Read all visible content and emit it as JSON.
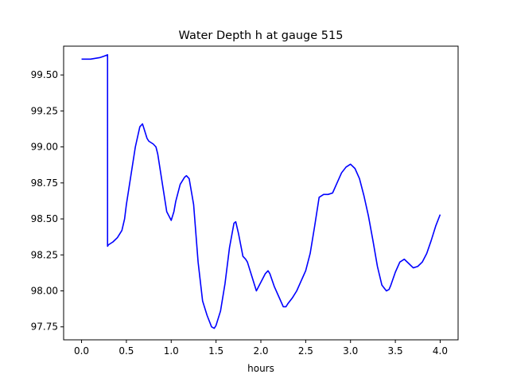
{
  "chart_data": {
    "type": "line",
    "title": "Water Depth h at gauge 515",
    "xlabel": "hours",
    "ylabel": "",
    "xlim": [
      -0.2,
      4.2
    ],
    "ylim": [
      97.66,
      99.7
    ],
    "xticks": [
      0.0,
      0.5,
      1.0,
      1.5,
      2.0,
      2.5,
      3.0,
      3.5,
      4.0
    ],
    "xtick_labels": [
      "0.0",
      "0.5",
      "1.0",
      "1.5",
      "2.0",
      "2.5",
      "3.0",
      "3.5",
      "4.0"
    ],
    "yticks": [
      97.75,
      98.0,
      98.25,
      98.5,
      98.75,
      99.0,
      99.25,
      99.5
    ],
    "ytick_labels": [
      "97.75",
      "98.00",
      "98.25",
      "98.50",
      "98.75",
      "99.00",
      "99.25",
      "99.50"
    ],
    "grid": false,
    "series": [
      {
        "color": "#0000ff",
        "x": [
          0.0,
          0.1,
          0.2,
          0.25,
          0.29,
          0.29,
          0.3,
          0.35,
          0.4,
          0.45,
          0.48,
          0.5,
          0.55,
          0.6,
          0.65,
          0.68,
          0.7,
          0.73,
          0.75,
          0.8,
          0.83,
          0.85,
          0.9,
          0.95,
          1.0,
          1.03,
          1.05,
          1.1,
          1.15,
          1.17,
          1.2,
          1.25,
          1.3,
          1.35,
          1.4,
          1.45,
          1.48,
          1.5,
          1.55,
          1.6,
          1.65,
          1.7,
          1.72,
          1.75,
          1.8,
          1.83,
          1.85,
          1.9,
          1.95,
          2.0,
          2.05,
          2.08,
          2.1,
          2.15,
          2.2,
          2.25,
          2.28,
          2.3,
          2.35,
          2.4,
          2.45,
          2.5,
          2.55,
          2.6,
          2.65,
          2.7,
          2.75,
          2.8,
          2.85,
          2.9,
          2.95,
          3.0,
          3.05,
          3.1,
          3.15,
          3.2,
          3.25,
          3.3,
          3.35,
          3.4,
          3.43,
          3.45,
          3.5,
          3.55,
          3.6,
          3.65,
          3.7,
          3.75,
          3.8,
          3.85,
          3.9,
          3.95,
          4.0
        ],
        "y": [
          99.61,
          99.61,
          99.62,
          99.63,
          99.64,
          98.31,
          98.32,
          98.34,
          98.37,
          98.42,
          98.5,
          98.6,
          98.8,
          99.0,
          99.14,
          99.16,
          99.12,
          99.06,
          99.04,
          99.02,
          99.0,
          98.95,
          98.75,
          98.55,
          98.49,
          98.55,
          98.62,
          98.74,
          98.79,
          98.8,
          98.78,
          98.6,
          98.2,
          97.93,
          97.83,
          97.75,
          97.74,
          97.76,
          97.86,
          98.05,
          98.3,
          98.47,
          98.48,
          98.4,
          98.24,
          98.22,
          98.2,
          98.1,
          98.0,
          98.06,
          98.12,
          98.14,
          98.12,
          98.03,
          97.96,
          97.89,
          97.89,
          97.91,
          97.95,
          98.0,
          98.07,
          98.14,
          98.26,
          98.45,
          98.65,
          98.67,
          98.67,
          98.68,
          98.75,
          98.82,
          98.86,
          98.88,
          98.85,
          98.78,
          98.66,
          98.52,
          98.35,
          98.17,
          98.04,
          98.0,
          98.01,
          98.04,
          98.13,
          98.2,
          98.22,
          98.19,
          98.16,
          98.17,
          98.2,
          98.26,
          98.35,
          98.45,
          98.53
        ]
      }
    ]
  }
}
